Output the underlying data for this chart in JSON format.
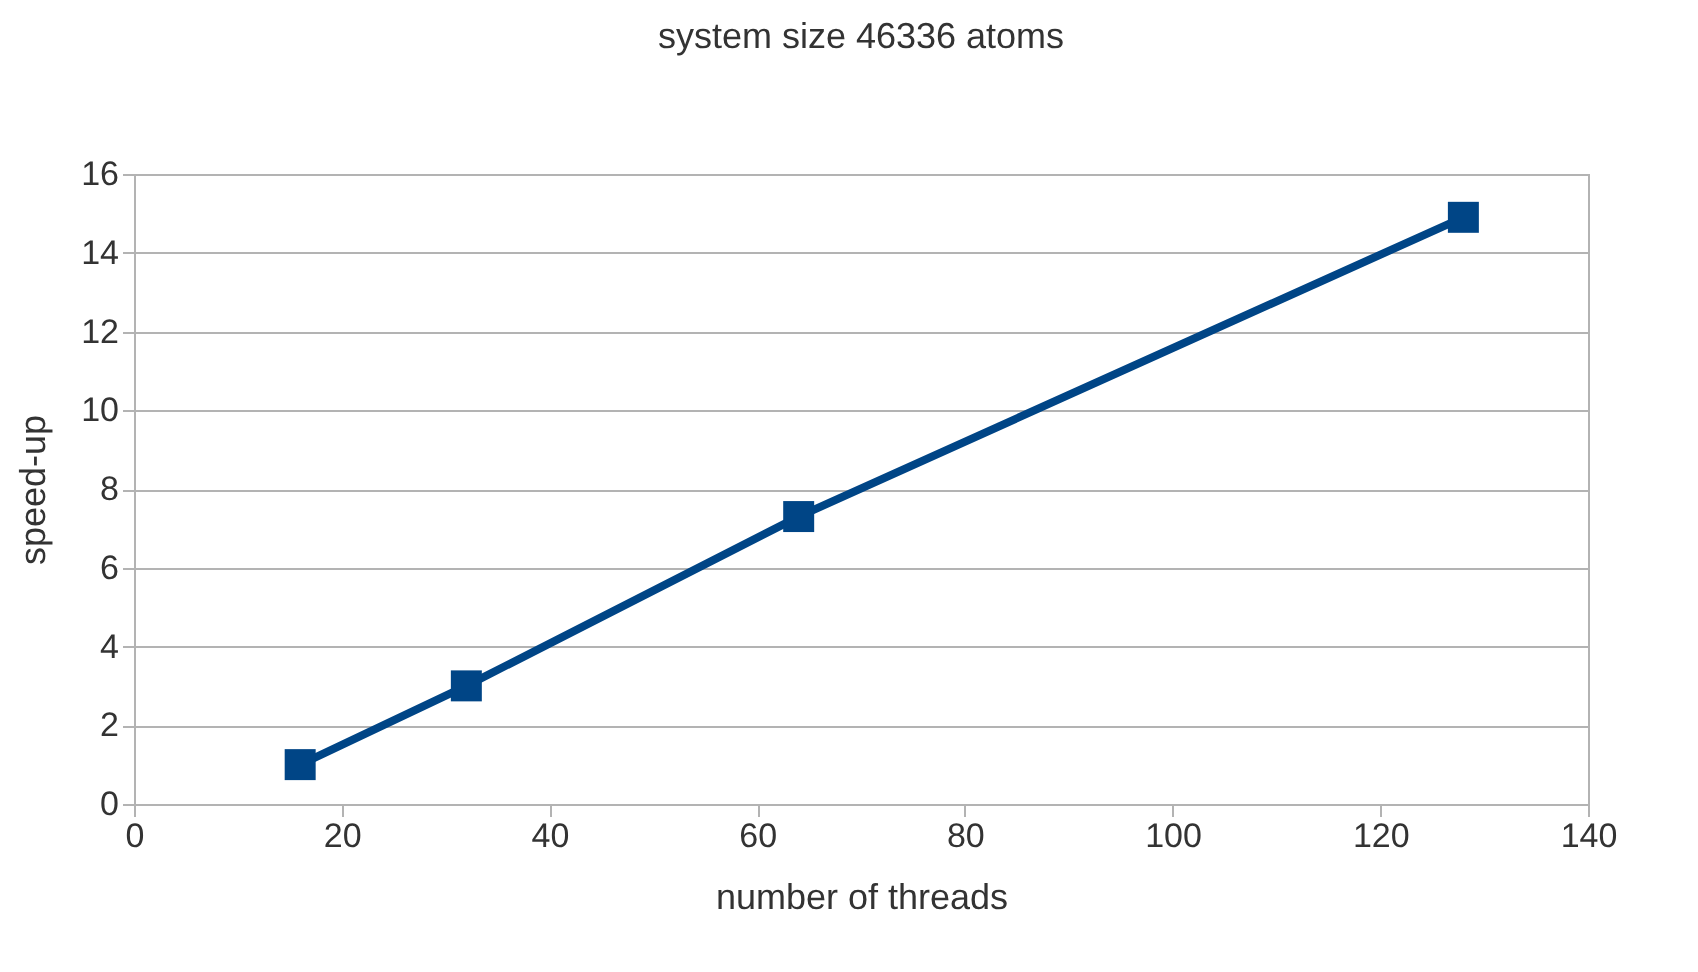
{
  "chart_data": {
    "type": "line",
    "title": "system size 46336 atoms",
    "xlabel": "number of threads",
    "ylabel": "speed-up",
    "x": [
      16,
      32,
      64,
      128
    ],
    "series": [
      {
        "color": "#004586",
        "values": [
          1,
          3,
          7.3,
          14.9
        ]
      }
    ],
    "xlim": [
      0,
      140
    ],
    "xticks": [
      0,
      20,
      40,
      60,
      80,
      100,
      120,
      140
    ],
    "ylim": [
      0,
      16
    ],
    "yticks": [
      0,
      2,
      4,
      6,
      8,
      10,
      12,
      14,
      16
    ],
    "grid": "y",
    "marker": "square",
    "line_style": "solid",
    "legend": false
  }
}
